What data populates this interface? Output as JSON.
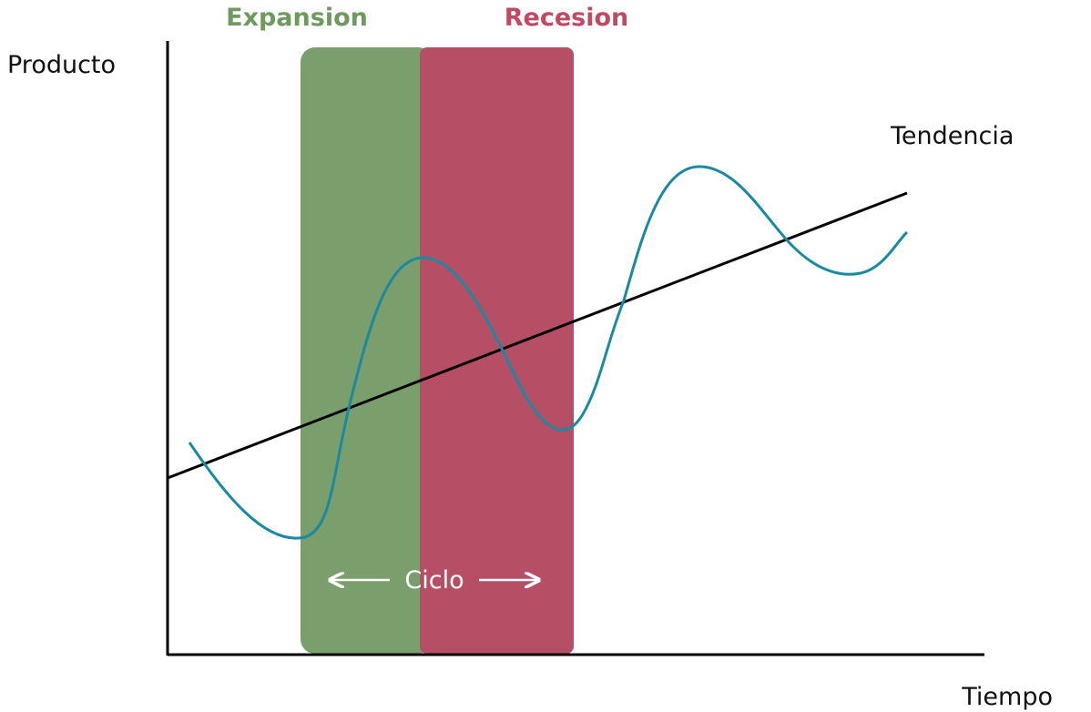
{
  "diagram": {
    "phases": [
      {
        "label": "Expansion",
        "fill_color": "#7a9e6c",
        "label_color": "#6f9a5f"
      },
      {
        "label": "Recesion",
        "fill_color": "#b64f66",
        "label_color": "#c04a64"
      }
    ],
    "y_axis_label": "Producto",
    "x_axis_label": "Tiempo",
    "trend_label": "Tendencia",
    "cycle_label": "Ciclo",
    "colors": {
      "axis": "#000000",
      "trend_line": "#000000",
      "cycle_curve": "#1a8aa0",
      "cycle_arrows": "#ffffff"
    }
  }
}
